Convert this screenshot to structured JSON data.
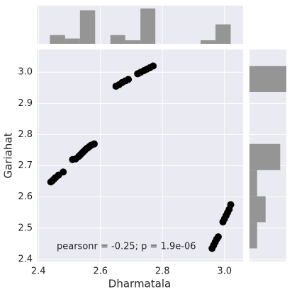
{
  "chart_data": {
    "type": "scatter",
    "xlabel": "Dharmatala",
    "ylabel": "Gariahat",
    "annotation": "pearsonr = -0.25; p = 1.9e-06",
    "color": "#000000",
    "x": [
      2.44,
      2.445,
      2.45,
      2.455,
      2.465,
      2.48,
      2.51,
      2.52,
      2.53,
      2.535,
      2.54,
      2.545,
      2.55,
      2.555,
      2.56,
      2.565,
      2.57,
      2.58,
      2.65,
      2.66,
      2.67,
      2.68,
      2.69,
      2.72,
      2.73,
      2.74,
      2.75,
      2.76,
      2.77,
      2.96,
      2.965,
      2.97,
      2.975,
      2.98,
      2.995,
      3.0,
      3.005,
      3.01,
      3.015,
      3.02
    ],
    "values": [
      2.648,
      2.652,
      2.657,
      2.662,
      2.67,
      2.68,
      2.72,
      2.722,
      2.73,
      2.735,
      2.74,
      2.745,
      2.75,
      2.755,
      2.758,
      2.762,
      2.766,
      2.77,
      2.955,
      2.96,
      2.967,
      2.972,
      2.977,
      2.995,
      3.0,
      3.005,
      3.01,
      3.015,
      3.02,
      2.435,
      2.445,
      2.455,
      2.465,
      2.472,
      2.52,
      2.53,
      2.54,
      2.55,
      2.56,
      2.575
    ],
    "xlim": [
      2.395,
      3.06
    ],
    "ylim": [
      2.393,
      3.073
    ],
    "xticks": [
      2.4,
      2.6,
      2.8,
      {
        "value": 3.0,
        "label": "3.0"
      }
    ],
    "yticks": [
      2.4,
      2.5,
      2.6,
      2.7,
      2.8,
      2.9,
      {
        "value": 3.0,
        "label": "3.0"
      }
    ],
    "grid": true,
    "marginal_x": {
      "color": "#8c8c8c",
      "bins": [
        2.437,
        2.486,
        2.534,
        2.583,
        2.632,
        2.68,
        2.729,
        2.777,
        2.826,
        2.874,
        2.923,
        2.971,
        3.02
      ],
      "counts": [
        5,
        3,
        19,
        0,
        5,
        2,
        20,
        0,
        0,
        0,
        2,
        11
      ]
    },
    "marginal_y": {
      "color": "#8c8c8c",
      "bins": [
        2.435,
        2.519,
        2.602,
        2.686,
        2.77,
        2.853,
        2.937,
        3.02
      ],
      "counts": [
        10,
        21,
        10,
        40,
        0,
        0,
        48
      ]
    }
  }
}
